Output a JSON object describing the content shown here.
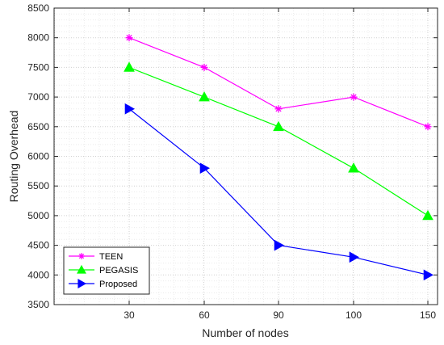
{
  "chart_data": {
    "type": "line",
    "categories": [
      "30",
      "60",
      "90",
      "100",
      "150"
    ],
    "xlabel": "Number of nodes",
    "ylabel": "Routing Overhead",
    "ylim": [
      3500,
      8500
    ],
    "yticks": [
      3500,
      4000,
      4500,
      5000,
      5500,
      6000,
      6500,
      7000,
      7500,
      8000,
      8500
    ],
    "grid": true,
    "grid_style": "dotted",
    "legend_position": "bottom-left",
    "series": [
      {
        "name": "TEEN",
        "values": [
          8000,
          7500,
          6800,
          7000,
          6500
        ],
        "color": "#ff00ff",
        "marker": "asterisk"
      },
      {
        "name": "PEGASIS",
        "values": [
          7500,
          7000,
          6500,
          5800,
          5000
        ],
        "color": "#00ff00",
        "marker": "triangle-up"
      },
      {
        "name": "Proposed",
        "values": [
          6800,
          5800,
          4500,
          4300,
          4000
        ],
        "color": "#0000ff",
        "marker": "triangle-right"
      }
    ]
  }
}
